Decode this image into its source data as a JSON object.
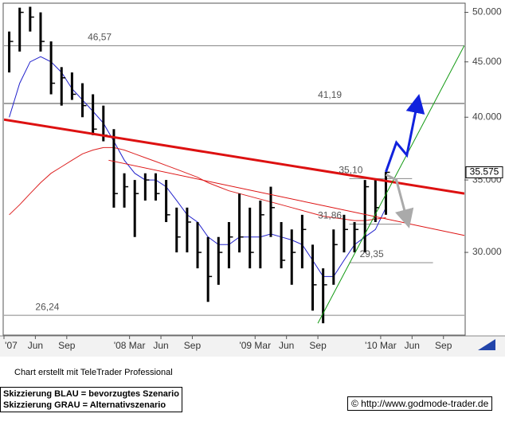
{
  "chart_data": {
    "type": "ohlc",
    "x": [
      "2007-03",
      "2007-04",
      "2007-05",
      "2007-06",
      "2007-07",
      "2007-08",
      "2007-09",
      "2007-10",
      "2007-11",
      "2007-12",
      "2008-01",
      "2008-02",
      "2008-03",
      "2008-04",
      "2008-05",
      "2008-06",
      "2008-07",
      "2008-08",
      "2008-09",
      "2008-10",
      "2008-11",
      "2008-12",
      "2009-01",
      "2009-02",
      "2009-03",
      "2009-04",
      "2009-05",
      "2009-06",
      "2009-07",
      "2009-08",
      "2009-09",
      "2009-10",
      "2009-11",
      "2009-12",
      "2010-01",
      "2010-02",
      "2010-03"
    ],
    "high": [
      48,
      50.5,
      50.6,
      50,
      47,
      44.5,
      44,
      43,
      42,
      41,
      39,
      35.5,
      35,
      35.5,
      35.5,
      35,
      33,
      33,
      32,
      31,
      31,
      32,
      34,
      33,
      33.5,
      34.5,
      32,
      31.5,
      32.5,
      30.5,
      29,
      31.5,
      32.5,
      32,
      35,
      35,
      35.6
    ],
    "low": [
      44,
      46,
      48,
      46,
      42,
      41,
      41.5,
      40,
      38.5,
      38,
      33,
      33,
      31,
      33.5,
      33.5,
      32,
      30,
      30,
      29,
      27,
      28,
      29,
      30,
      29,
      29,
      31,
      29,
      28,
      29,
      26.5,
      25.8,
      28,
      30,
      30,
      30,
      32,
      32.5
    ],
    "close": [
      47,
      50,
      49.5,
      47,
      43,
      43.5,
      42,
      41,
      39,
      38.5,
      34,
      34.5,
      34,
      35,
      34,
      32.5,
      31,
      32,
      30,
      28.5,
      30,
      31,
      31,
      30,
      32.5,
      33,
      29.5,
      30,
      31.5,
      28,
      28,
      30.5,
      31.5,
      31.5,
      34.5,
      33,
      35.575
    ],
    "color": "#000000",
    "moving_averages": [
      {
        "color": "#2222cc",
        "values": [
          40,
          43,
          45,
          45.5,
          45,
          44,
          42.5,
          41.5,
          40.5,
          39.5,
          38,
          36.5,
          35.5,
          35,
          35,
          34.5,
          33.5,
          32.5,
          32,
          31,
          30.5,
          30.5,
          31,
          31,
          31,
          31.2,
          31,
          30.8,
          30.5,
          29.5,
          28.5,
          28.5,
          29.5,
          30.5,
          31,
          31.5,
          33
        ]
      },
      {
        "color": "#dd2222",
        "values": [
          32.5,
          33.2,
          34,
          34.8,
          35.5,
          36,
          36.5,
          37,
          37.3,
          37.5,
          37.5,
          37.3,
          37,
          36.7,
          36.4,
          36.1,
          35.8,
          35.5,
          35.2,
          34.8,
          34.5,
          34.2,
          34,
          33.8,
          33.6,
          33.4,
          33.2,
          33,
          32.8,
          32.6,
          32.4,
          32.3,
          32.2,
          32.1,
          32.1,
          32.2,
          32.3
        ]
      }
    ],
    "levels": [
      {
        "value": 46.57,
        "label": "46,57",
        "from": "2007-03",
        "to": "2010-11",
        "color": "#888888",
        "label_at": "2007-11"
      },
      {
        "value": 41.19,
        "label": "41,19",
        "from": "2007-03",
        "to": "2010-11",
        "color": "#444444",
        "label_at": "2009-09"
      },
      {
        "value": 35.1,
        "label": "35,10",
        "from": "2009-12",
        "to": "2010-06",
        "color": "#888888",
        "label_at": "2009-11"
      },
      {
        "value": 31.86,
        "label": "31,86",
        "from": "2009-12",
        "to": "2010-05",
        "color": "#888888",
        "label_at": "2009-09"
      },
      {
        "value": 29.35,
        "label": "29,35",
        "from": "2009-12",
        "to": "2010-08",
        "color": "#888888",
        "label_at": "2010-01"
      },
      {
        "value": 26.24,
        "label": "26,24",
        "from": "2007-03",
        "to": "2010-11",
        "color": "#888888",
        "label_at": "2007-06"
      }
    ],
    "trendlines": [
      {
        "color": "#dd1111",
        "width": 3,
        "x": [
          "2007-03",
          "2010-11"
        ],
        "y": [
          39.8,
          34.0
        ]
      },
      {
        "color": "#dd1111",
        "width": 1,
        "x": [
          "2008-01",
          "2010-11"
        ],
        "y": [
          36.5,
          31.1
        ]
      },
      {
        "color": "#119911",
        "width": 1,
        "x": [
          "2009-09",
          "2010-11"
        ],
        "y": [
          25.8,
          46.6
        ]
      }
    ],
    "scenarios": [
      {
        "color": "#1122dd",
        "x": [
          "2010-03",
          "2010-04",
          "2010-05",
          "2010-06"
        ],
        "y": [
          35.6,
          37.9,
          36.9,
          41.2
        ]
      },
      {
        "color": "#aaaaaa",
        "x": [
          "2010-03",
          "2010-04",
          "2010-05"
        ],
        "y": [
          35.4,
          35.0,
          32.2
        ]
      }
    ],
    "last_price": {
      "value": 35.575,
      "label": "35.575"
    },
    "log_scale": true,
    "xlim": [
      "2007-03",
      "2010-11"
    ],
    "ylim": [
      25.2,
      50.9
    ],
    "yticks": [
      {
        "value": 30,
        "label": "30.000"
      },
      {
        "value": 35,
        "label": "35.000"
      },
      {
        "value": 40,
        "label": "40.000"
      },
      {
        "value": 45,
        "label": "45.000"
      },
      {
        "value": 50,
        "label": "50.000"
      }
    ],
    "xticks": [
      {
        "value": "2007-03",
        "label": "'07"
      },
      {
        "value": "2007-06",
        "label": "Jun"
      },
      {
        "value": "2007-09",
        "label": "Sep"
      },
      {
        "value": "2008-03",
        "label": "'08 Mar"
      },
      {
        "value": "2008-06",
        "label": "Jun"
      },
      {
        "value": "2008-09",
        "label": "Sep"
      },
      {
        "value": "2009-03",
        "label": "'09 Mar"
      },
      {
        "value": "2009-06",
        "label": "Jun"
      },
      {
        "value": "2009-09",
        "label": "Sep"
      },
      {
        "value": "2010-03",
        "label": "'10 Mar"
      },
      {
        "value": "2010-06",
        "label": "Jun"
      },
      {
        "value": "2010-09",
        "label": "Sep"
      }
    ]
  },
  "footer": {
    "credit": "Chart erstellt mit TeleTrader Professional",
    "legend_blue": "Skizzierung BLAU = bevorzugtes Szenario",
    "legend_gray": "Skizzierung GRAU = Alternativszenario",
    "copyright": "© http://www.godmode-trader.de"
  }
}
